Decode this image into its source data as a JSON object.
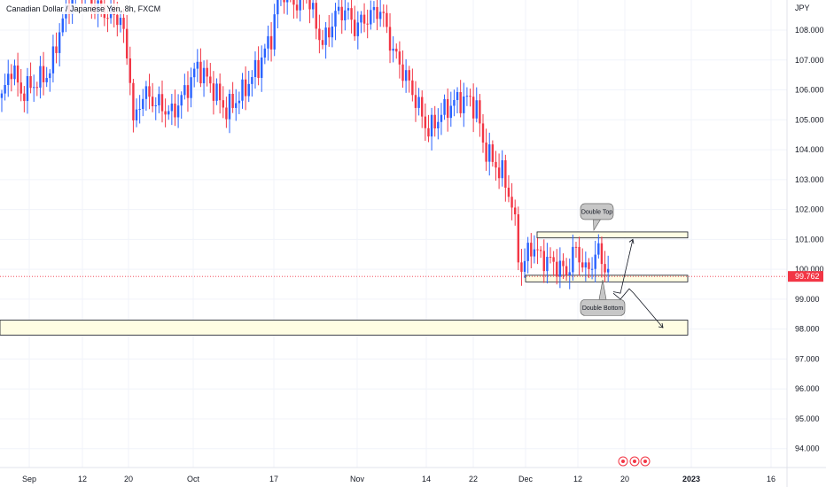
{
  "chart_data": {
    "type": "candlestick",
    "title": "Canadian Dollar / Japanese Yen, 8h, FXCM",
    "currency": "JPY",
    "ylim": [
      93.4,
      108.8
    ],
    "y_ticks": [
      "108.000",
      "107.000",
      "106.000",
      "105.000",
      "104.000",
      "103.000",
      "102.000",
      "101.000",
      "100.000",
      "99.000",
      "98.000",
      "97.000",
      "96.000",
      "95.000",
      "94.000"
    ],
    "x_ticks": [
      "Sep",
      "12",
      "20",
      "Oct",
      "17",
      "Nov",
      "14",
      "22",
      "Dec",
      "12",
      "20",
      "2023",
      "16"
    ],
    "last_price": "99.762",
    "last_price_value": 99.762,
    "colors": {
      "up": "#2962ff",
      "down": "#f23645",
      "zone_fill": "#fffde3",
      "last_price": "#f23645",
      "grid": "#f0f3fa"
    },
    "anchors": [
      [
        0,
        105.7
      ],
      [
        3,
        106.8
      ],
      [
        6,
        105.9
      ],
      [
        10,
        106.2
      ],
      [
        15,
        106.6
      ],
      [
        18,
        108.0
      ],
      [
        24,
        109.8
      ],
      [
        28,
        108.9
      ],
      [
        32,
        108.6
      ],
      [
        37,
        108.4
      ],
      [
        40,
        106.5
      ],
      [
        41,
        104.8
      ],
      [
        44,
        105.9
      ],
      [
        49,
        105.5
      ],
      [
        53,
        105.2
      ],
      [
        57,
        105.9
      ],
      [
        61,
        106.8
      ],
      [
        65,
        106.2
      ],
      [
        70,
        105.3
      ],
      [
        75,
        105.9
      ],
      [
        80,
        106.8
      ],
      [
        84,
        107.8
      ],
      [
        87,
        109.5
      ],
      [
        91,
        108.9
      ],
      [
        95,
        109.2
      ],
      [
        100,
        107.5
      ],
      [
        104,
        108.5
      ],
      [
        107,
        108.7
      ],
      [
        110,
        108.1
      ],
      [
        115,
        108.5
      ],
      [
        118,
        108.7
      ],
      [
        122,
        107.3
      ],
      [
        127,
        106.2
      ],
      [
        130,
        105.4
      ],
      [
        133,
        104.6
      ],
      [
        137,
        105.2
      ],
      [
        141,
        105.6
      ],
      [
        145,
        105.7
      ],
      [
        148,
        105.4
      ],
      [
        150,
        104.2
      ],
      [
        153,
        103.6
      ],
      [
        156,
        103.2
      ],
      [
        159,
        102.2
      ],
      [
        160,
        101.4
      ],
      [
        161,
        100.5
      ],
      [
        162,
        100.0
      ],
      [
        165,
        100.8
      ],
      [
        168,
        100.4
      ],
      [
        172,
        100.2
      ],
      [
        176,
        99.9
      ],
      [
        179,
        100.7
      ],
      [
        182,
        99.9
      ],
      [
        186,
        100.6
      ],
      [
        188,
        100.1
      ],
      [
        189,
        99.8
      ]
    ],
    "zones": [
      {
        "name": "upper-range-box",
        "y_top": 101.25,
        "y_bottom": 101.05
      },
      {
        "name": "lower-range-box",
        "y_top": 99.8,
        "y_bottom": 99.58
      },
      {
        "name": "target-zone",
        "y_top": 98.3,
        "y_bottom": 97.8
      }
    ],
    "annotations": [
      {
        "name": "double-top-callout",
        "label": "Double Top",
        "y": 101.93
      },
      {
        "name": "double-bottom-callout",
        "label": "Double Bottom",
        "y": 98.72
      }
    ],
    "projection_up_path": [
      [
        99.25
      ],
      [
        101.0
      ]
    ],
    "projection_down_path": [
      [
        99.2
      ],
      [
        99.35
      ],
      [
        98.05
      ]
    ]
  }
}
